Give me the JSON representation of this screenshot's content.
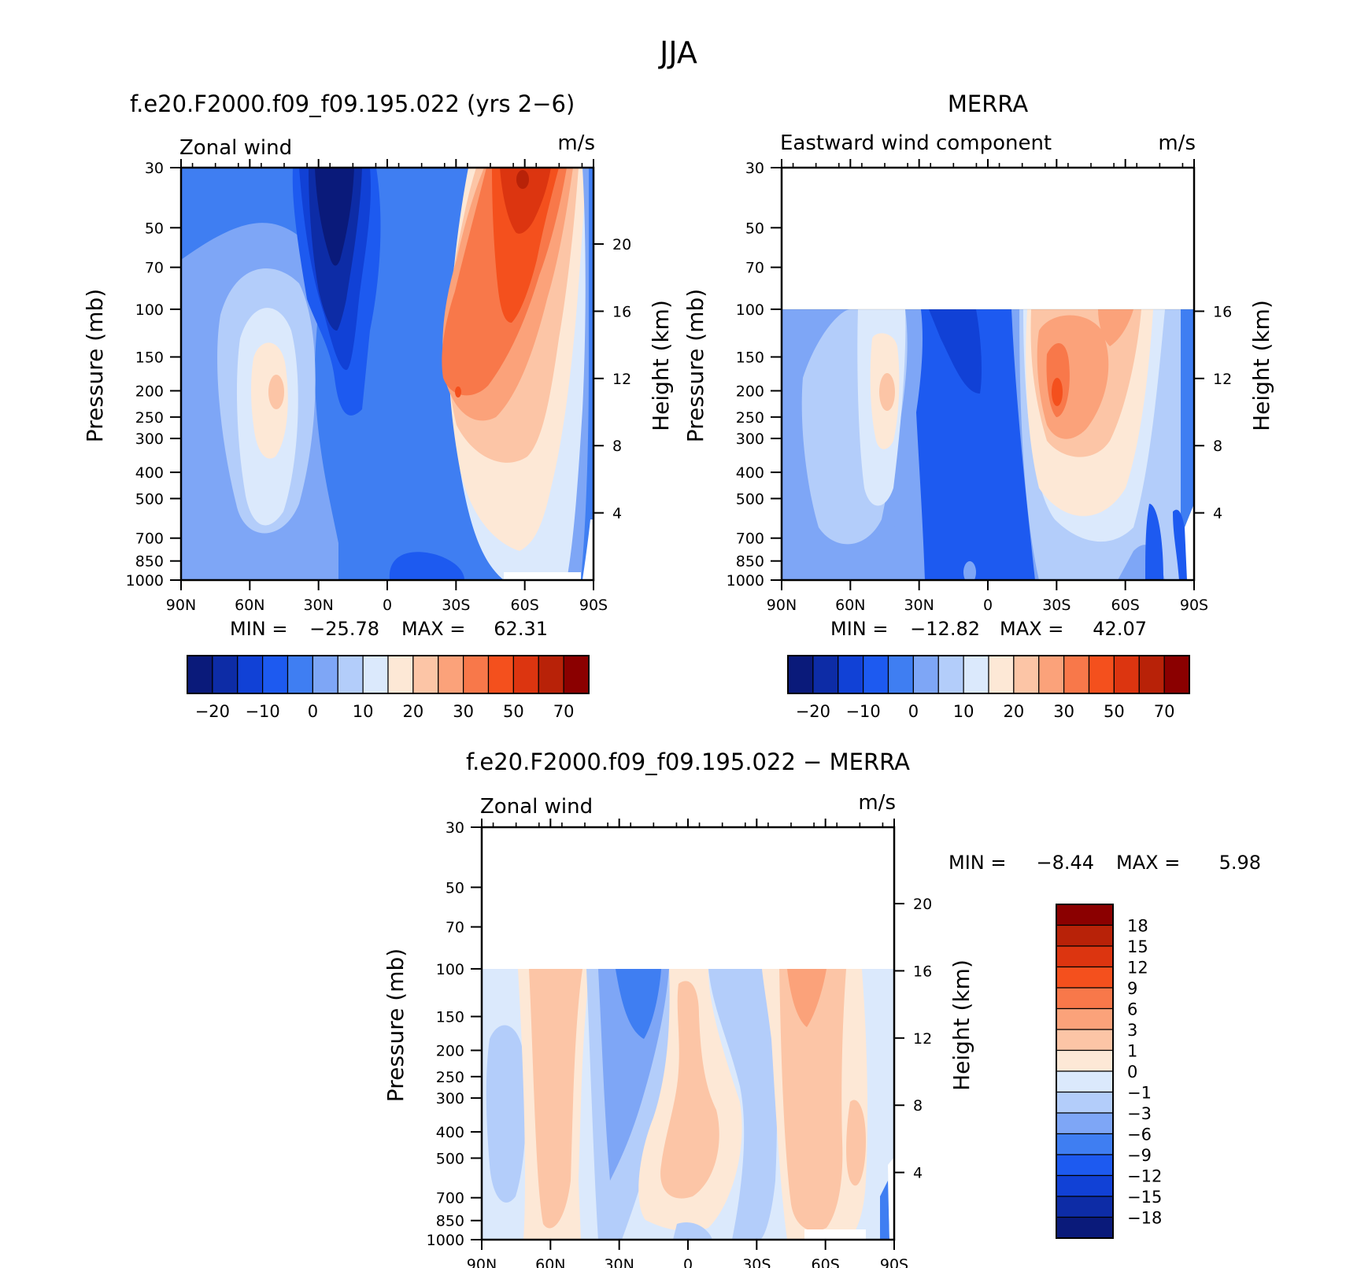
{
  "figure": {
    "title": "JJA"
  },
  "scale_main": {
    "colors": [
      "#0a1a7a",
      "#0d2ca6",
      "#1141d6",
      "#1d5af0",
      "#3f7ef2",
      "#7ea6f6",
      "#b3cdfa",
      "#dbe9fc",
      "#fde8d6",
      "#fcc5a6",
      "#fba27a",
      "#f8784a",
      "#f4501d",
      "#dc3510",
      "#b82208",
      "#8b0000"
    ],
    "tick_labels": [
      "−20",
      "−10",
      "0",
      "10",
      "20",
      "30",
      "50",
      "70"
    ]
  },
  "scale_diff": {
    "colors": [
      "#0a1a7a",
      "#0d2ca6",
      "#1141d6",
      "#1d5af0",
      "#3f7ef2",
      "#7ea6f6",
      "#b3cdfa",
      "#dbe9fc",
      "#fde8d6",
      "#fcc5a6",
      "#fba27a",
      "#f8784a",
      "#f4501d",
      "#dc3510",
      "#b82208",
      "#8b0000"
    ],
    "tick_labels": [
      "18",
      "15",
      "12",
      "9",
      "6",
      "3",
      "1",
      "0",
      "−1",
      "−3",
      "−6",
      "−9",
      "−12",
      "−15",
      "−18"
    ]
  },
  "axes": {
    "y_ticks": [
      "30",
      "50",
      "70",
      "100",
      "150",
      "200",
      "250",
      "300",
      "400",
      "500",
      "700",
      "850",
      "1000"
    ],
    "x_ticks": [
      "90N",
      "60N",
      "30N",
      "0",
      "30S",
      "60S",
      "90S"
    ],
    "ylabel": "Pressure (mb)",
    "ylabel_right": "Height (km)",
    "units": "m/s",
    "min_label": "MIN =",
    "max_label": "MAX ="
  },
  "chart_data": [
    {
      "type": "heatmap",
      "title": "f.e20.F2000.f09_f09.195.022 (yrs 2−6)",
      "variable": "Zonal wind",
      "units": "m/s",
      "x": [
        "90N",
        "60N",
        "30N",
        "0",
        "30S",
        "60S",
        "90S"
      ],
      "y_pressure_mb": [
        30,
        50,
        70,
        100,
        150,
        200,
        250,
        300,
        400,
        500,
        700,
        850,
        1000
      ],
      "height_km_ticks": [
        "4",
        "8",
        "12",
        "16",
        "20"
      ],
      "ylim_mb": [
        1000,
        30
      ],
      "min": "−25.78",
      "max": "62.31",
      "colorbar": "horizontal",
      "features": [
        {
          "x": -20,
          "p": 40,
          "value": -22
        },
        {
          "x": -50,
          "p": 200,
          "value": 17
        },
        {
          "x": 55,
          "p": 40,
          "value": 62
        },
        {
          "x": 30,
          "p": 200,
          "value": 45
        }
      ]
    },
    {
      "type": "heatmap",
      "title": "MERRA",
      "variable": "Eastward wind component",
      "units": "m/s",
      "x": [
        "90N",
        "60N",
        "30N",
        "0",
        "30S",
        "60S",
        "90S"
      ],
      "y_pressure_mb": [
        30,
        50,
        70,
        100,
        150,
        200,
        250,
        300,
        400,
        500,
        700,
        850,
        1000
      ],
      "height_km_ticks": [
        "4",
        "8",
        "12",
        "16"
      ],
      "data_pressure_range_mb": [
        100,
        1000
      ],
      "min": "−12.82",
      "max": "42.07",
      "colorbar": "horizontal",
      "features": [
        {
          "x": -45,
          "p": 200,
          "value": 17
        },
        {
          "x": -10,
          "p": 150,
          "value": -12
        },
        {
          "x": 30,
          "p": 200,
          "value": 42
        }
      ]
    },
    {
      "type": "heatmap",
      "title": "f.e20.F2000.f09_f09.195.022 − MERRA",
      "variable": "Zonal wind",
      "units": "m/s",
      "x": [
        "90N",
        "60N",
        "30N",
        "0",
        "30S",
        "60S",
        "90S"
      ],
      "y_pressure_mb": [
        30,
        50,
        70,
        100,
        150,
        200,
        250,
        300,
        400,
        500,
        700,
        850,
        1000
      ],
      "height_km_ticks": [
        "4",
        "8",
        "12",
        "16",
        "20"
      ],
      "data_pressure_range_mb": [
        100,
        1000
      ],
      "min": "−8.44",
      "max": "5.98",
      "colorbar": "vertical",
      "features": [
        {
          "x": -55,
          "p": 300,
          "value": 4
        },
        {
          "x": -25,
          "p": 150,
          "value": -7
        },
        {
          "x": 10,
          "p": 400,
          "value": 2
        },
        {
          "x": 50,
          "p": 150,
          "value": 4
        }
      ]
    }
  ]
}
